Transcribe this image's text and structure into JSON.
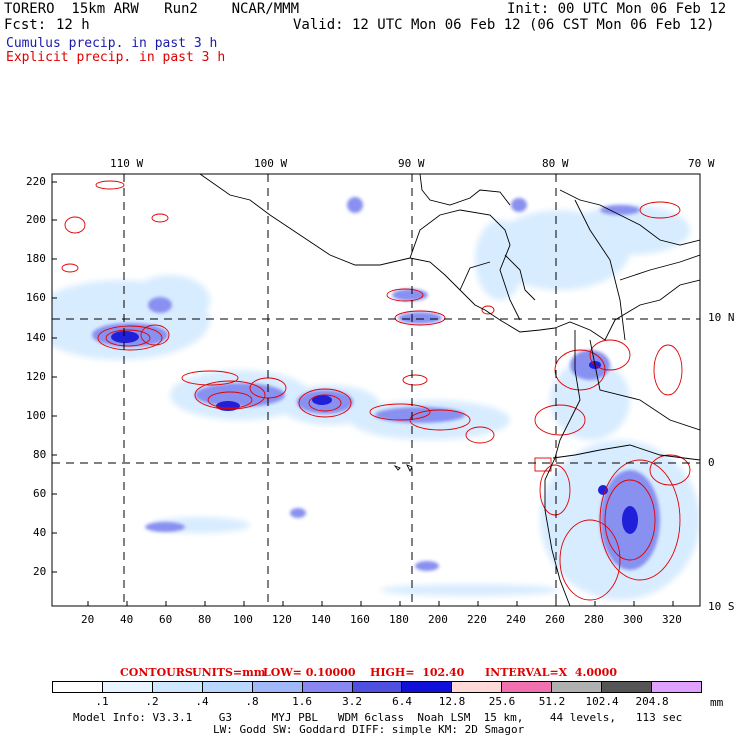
{
  "header": {
    "model": "TORERO  15km ARW   Run2    NCAR/MMM",
    "init": "Init: 00 UTC Mon 06 Feb 12",
    "fcst_label": "Fcst:",
    "fcst_value": "12 h",
    "valid": "Valid: 12 UTC Mon 06 Feb 12 (06 CST Mon 06 Feb 12)",
    "legend_cumulus": "Cumulus precip. in past 3 h",
    "legend_explicit": "Explicit precip. in past 3 h",
    "cumulus_color": "#1a1ab0",
    "explicit_color": "#e00000"
  },
  "map": {
    "lon_labels_top": [
      "110 W",
      "100 W",
      "90 W",
      "80 W",
      "70 W"
    ],
    "lat_labels_right": [
      "10 N",
      "0",
      "10 S"
    ],
    "y_ticks": [
      "220",
      "200",
      "180",
      "160",
      "140",
      "120",
      "100",
      "80",
      "60",
      "40",
      "20"
    ],
    "x_ticks": [
      "20",
      "40",
      "60",
      "80",
      "100",
      "120",
      "140",
      "160",
      "180",
      "200",
      "220",
      "240",
      "260",
      "280",
      "300",
      "320"
    ]
  },
  "contours": {
    "label": "CONTOURS:",
    "units": "UNITS=mm",
    "low": "LOW= 0.10000",
    "high": "HIGH=  102.40",
    "interval": "INTERVAL=X  4.0000"
  },
  "colorbar": {
    "labels": [
      ".1",
      ".2",
      ".4",
      ".8",
      "1.6",
      "3.2",
      "6.4",
      "12.8",
      "25.6",
      "51.2",
      "102.4",
      "204.8"
    ],
    "unit": "mm",
    "colors": [
      "#ffffff",
      "#e8f4ff",
      "#d0e8ff",
      "#b8d8ff",
      "#a0b8f8",
      "#8888f0",
      "#5050e0",
      "#1010d8",
      "#ffd8d8",
      "#f070b0",
      "#b0b0b0",
      "#555555",
      "#e0a0ff"
    ]
  },
  "footer": {
    "line1": "Model Info: V3.3.1    G3      MYJ PBL   WDM 6class  Noah LSM  15 km,    44 levels,   113 sec",
    "line2": "LW: Godd SW: Goddard DIFF: simple KM: 2D Smagor"
  }
}
